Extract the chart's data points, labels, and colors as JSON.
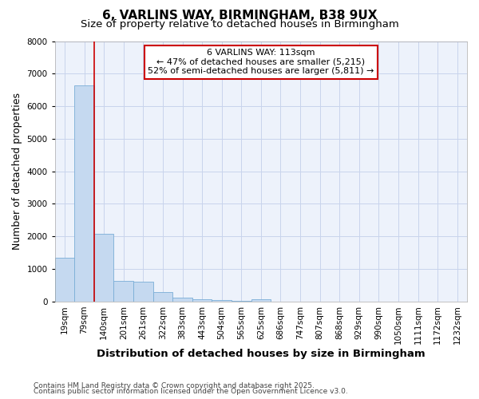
{
  "title": "6, VARLINS WAY, BIRMINGHAM, B38 9UX",
  "subtitle": "Size of property relative to detached houses in Birmingham",
  "xlabel": "Distribution of detached houses by size in Birmingham",
  "ylabel": "Number of detached properties",
  "bar_color": "#c5d9f0",
  "bar_edge_color": "#7aaed6",
  "background_color": "#edf2fb",
  "categories": [
    "19sqm",
    "79sqm",
    "140sqm",
    "201sqm",
    "261sqm",
    "322sqm",
    "383sqm",
    "443sqm",
    "504sqm",
    "565sqm",
    "625sqm",
    "686sqm",
    "747sqm",
    "807sqm",
    "868sqm",
    "929sqm",
    "990sqm",
    "1050sqm",
    "1111sqm",
    "1172sqm",
    "1232sqm"
  ],
  "values": [
    1340,
    6650,
    2090,
    640,
    620,
    300,
    130,
    80,
    45,
    25,
    70,
    0,
    0,
    0,
    0,
    0,
    0,
    0,
    0,
    0,
    0
  ],
  "vline_x": 1.5,
  "vline_color": "#cc0000",
  "annotation_text": "6 VARLINS WAY: 113sqm\n← 47% of detached houses are smaller (5,215)\n52% of semi-detached houses are larger (5,811) →",
  "annotation_box_color": "#ffffff",
  "annotation_box_edge_color": "#cc0000",
  "ylim": [
    0,
    8000
  ],
  "yticks": [
    0,
    1000,
    2000,
    3000,
    4000,
    5000,
    6000,
    7000,
    8000
  ],
  "footnote1": "Contains HM Land Registry data © Crown copyright and database right 2025.",
  "footnote2": "Contains public sector information licensed under the Open Government Licence v3.0.",
  "grid_color": "#c8d4ec",
  "title_fontsize": 11,
  "subtitle_fontsize": 9.5,
  "axis_label_fontsize": 9,
  "tick_fontsize": 7.5,
  "annotation_fontsize": 8,
  "footnote_fontsize": 6.5
}
